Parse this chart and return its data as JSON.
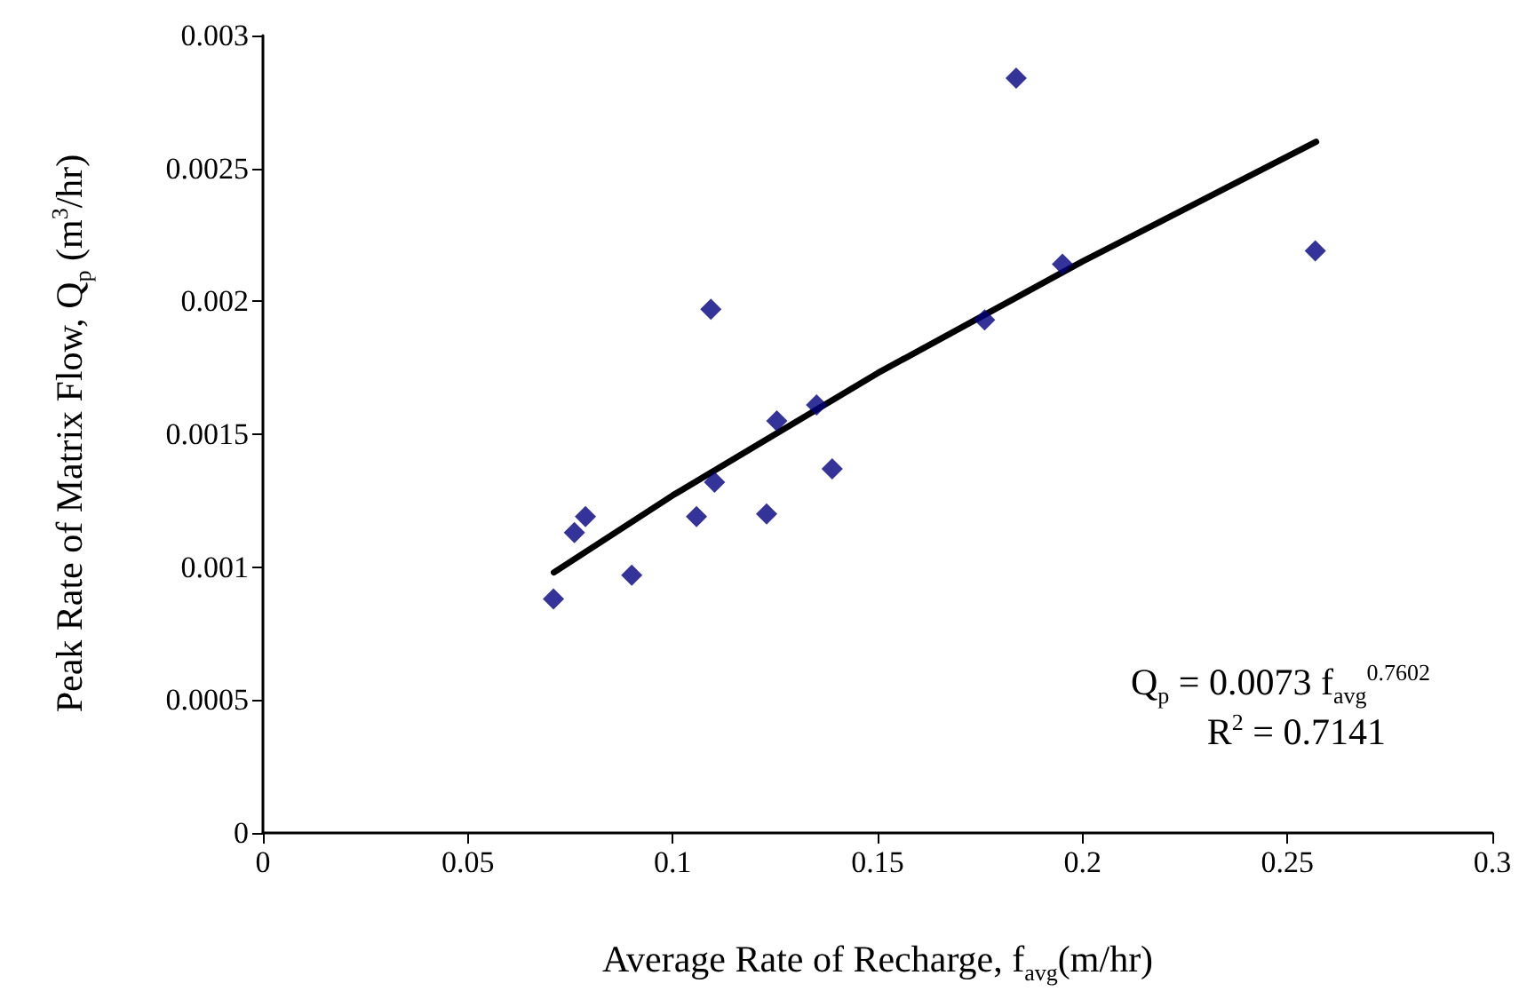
{
  "chart_data": {
    "type": "scatter",
    "xlabel": "Average Rate of Recharge, f$_{avg}$(m/hr)",
    "ylabel": "Peak Rate of Matrix Flow,  Q$_{p}$ (m$^{3}$/hr)",
    "annotations": [
      "Q$_{p}$ = 0.0073 f$_{avg}$$^{0.7602}$",
      "R$^{2}$ = 0.7141"
    ],
    "xlim": [
      0,
      0.3
    ],
    "xticks": [
      0,
      0.05,
      0.1,
      0.15,
      0.2,
      0.25,
      0.3
    ],
    "ylim": [
      0,
      0.003
    ],
    "yticks": [
      0,
      0.0005,
      0.001,
      0.0015,
      0.002,
      0.0025,
      0.003
    ],
    "marker": "diamond",
    "series": [
      {
        "color": "#000080",
        "x": [
          0.0709,
          0.076,
          0.0787,
          0.09,
          0.1058,
          0.1093,
          0.1102,
          0.1229,
          0.1254,
          0.1351,
          0.1389,
          0.1761,
          0.1838,
          0.1951,
          0.2568
        ],
        "values": [
          0.00088,
          0.00113,
          0.00119,
          0.00097,
          0.00119,
          0.00197,
          0.00132,
          0.0012,
          0.00155,
          0.00161,
          0.00137,
          0.00193,
          0.00284,
          0.00214,
          0.00219
        ]
      },
      {
        "type": "line",
        "color": "#000000",
        "marker": "none",
        "x": [
          0.071,
          0.1,
          0.15,
          0.2,
          0.257
        ],
        "values": [
          0.00098,
          0.00127,
          0.00173,
          0.00215,
          0.0026
        ]
      }
    ]
  }
}
